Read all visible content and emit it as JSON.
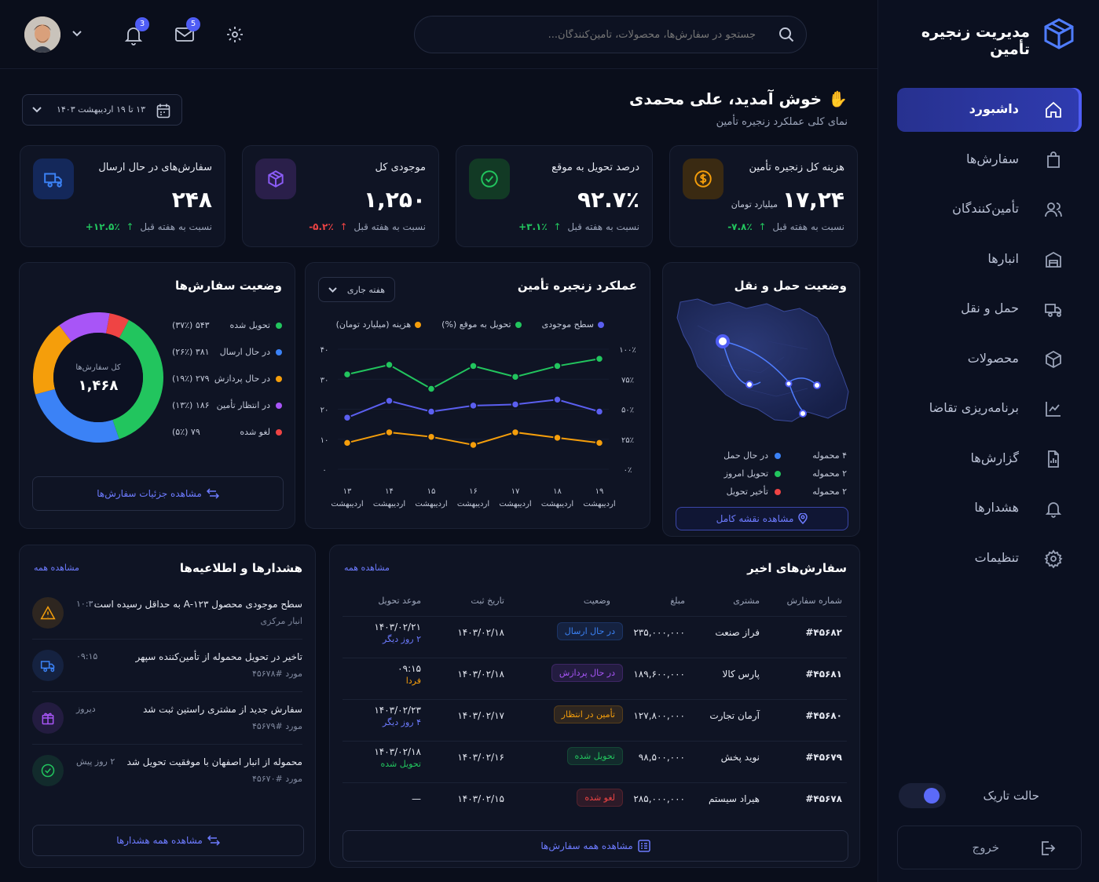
{
  "brand": {
    "title": "مدیریت زنجیره تأمین"
  },
  "search": {
    "placeholder": "جستجو در سفارش‌ها، محصولات، تأمین‌کنندگان..."
  },
  "topbar": {
    "notifications_count": "3",
    "messages_count": "5"
  },
  "sidebar": {
    "items": [
      {
        "label": "داشبورد",
        "icon": "home-icon"
      },
      {
        "label": "سفارش‌ها",
        "icon": "bag-icon"
      },
      {
        "label": "تأمین‌کنندگان",
        "icon": "users-icon"
      },
      {
        "label": "انبارها",
        "icon": "warehouse-icon"
      },
      {
        "label": "حمل و نقل",
        "icon": "truck-icon"
      },
      {
        "label": "محصولات",
        "icon": "box-icon"
      },
      {
        "label": "برنامه‌ریزی تقاضا",
        "icon": "chart-icon"
      },
      {
        "label": "گزارش‌ها",
        "icon": "report-icon"
      },
      {
        "label": "هشدارها",
        "icon": "bell-icon"
      },
      {
        "label": "تنظیمات",
        "icon": "gear-icon"
      }
    ],
    "dark_mode_label": "حالت تاریک",
    "logout_label": "خروج"
  },
  "header": {
    "greeting": "خوش آمدید، علی محمدی",
    "subtitle": "نمای کلی عملکرد زنجیره تأمین",
    "date_range": "۱۳ تا ۱۹ اردیبهشت ۱۴۰۳"
  },
  "kpis": [
    {
      "title": "هزینه کل زنجیره تأمین",
      "value": "۱۷,۲۴",
      "unit": "میلیارد تومان",
      "compare": "نسبت به هفته قبل",
      "change": "-۷.۸٪",
      "color": "#f59e0b"
    },
    {
      "title": "درصد تحویل به موقع",
      "value": "۹۲.۷٪",
      "unit": "",
      "compare": "نسبت به هفته قبل",
      "change": "+۳.۱٪",
      "color": "#22c55e"
    },
    {
      "title": "موجودی کل",
      "value": "۱,۲۵۰",
      "unit": "",
      "compare": "نسبت به هفته قبل",
      "change": "-۵.۲٪",
      "color": "#8b5cf6"
    },
    {
      "title": "سفارش‌های در حال ارسال",
      "value": "۲۴۸",
      "unit": "",
      "compare": "نسبت به هفته قبل",
      "change": "+۱۲.۵٪",
      "color": "#3b82f6"
    }
  ],
  "transport": {
    "title": "وضعیت حمل و نقل",
    "legend": [
      {
        "label": "در حال حمل",
        "value": "۴ محموله",
        "color": "#3b82f6"
      },
      {
        "label": "تحویل امروز",
        "value": "۲ محموله",
        "color": "#22c55e"
      },
      {
        "label": "تأخیر تحویل",
        "value": "۲ محموله",
        "color": "#ef4444"
      }
    ],
    "map_button": "مشاهده نقشه کامل"
  },
  "performance": {
    "title": "عملکرد زنجیره تأمین",
    "period": "هفته جاری"
  },
  "chart_data": {
    "type": "line",
    "x": [
      "۱۳ اردیبهشت",
      "۱۴ اردیبهشت",
      "۱۵ اردیبهشت",
      "۱۶ اردیبهشت",
      "۱۷ اردیبهشت",
      "۱۸ اردیبهشت",
      "۱۹ اردیبهشت"
    ],
    "x_days": [
      "۱۳",
      "۱۴",
      "۱۵",
      "۱۶",
      "۱۷",
      "۱۸",
      "۱۹"
    ],
    "x_month": "اردیبهشت",
    "left_ticks": [
      "۴۰",
      "۳۰",
      "۲۰",
      "۱۰",
      "۰"
    ],
    "right_ticks": [
      "۱۰۰٪",
      "۷۵٪",
      "۵۰٪",
      "۲۵٪",
      "۰٪"
    ],
    "ylim": [
      0,
      40
    ],
    "y2lim": [
      0,
      100
    ],
    "series": [
      {
        "name": "سطح موجودی",
        "color": "#5b5ff0",
        "axis": "right",
        "values": [
          43,
          57,
          48,
          53,
          54,
          58,
          48
        ]
      },
      {
        "name": "تحویل به موقع (%)",
        "color": "#22c55e",
        "axis": "right",
        "values": [
          79,
          87,
          67,
          86,
          77,
          86,
          92
        ]
      },
      {
        "name": "هزینه (میلیارد تومان)",
        "color": "#f59e0b",
        "axis": "left",
        "values": [
          8.8,
          12.3,
          10.8,
          8.1,
          12.3,
          10.5,
          8.8
        ]
      }
    ]
  },
  "orders_status": {
    "title": "وضعیت سفارش‌ها",
    "total_label": "کل سفارش‌ها",
    "total": "۱,۴۶۸",
    "items": [
      {
        "label": "تحویل شده",
        "value": "۵۴۳ (۳۷٪)",
        "pct": 37,
        "color": "#22c55e"
      },
      {
        "label": "در حال ارسال",
        "value": "۳۸۱ (۲۶٪)",
        "pct": 26,
        "color": "#3b82f6"
      },
      {
        "label": "در حال پردازش",
        "value": "۲۷۹ (۱۹٪)",
        "pct": 19,
        "color": "#f59e0b"
      },
      {
        "label": "در انتظار تأمین",
        "value": "۱۸۶ (۱۳٪)",
        "pct": 13,
        "color": "#a855f7"
      },
      {
        "label": "لغو شده",
        "value": "۷۹ (۵٪)",
        "pct": 5,
        "color": "#ef4444"
      }
    ],
    "details_button": "مشاهده جزئیات سفارش‌ها"
  },
  "recent_orders": {
    "title": "سفارش‌های اخیر",
    "view_all": "مشاهده همه",
    "columns": [
      "شماره سفارش",
      "مشتری",
      "مبلغ",
      "وضعیت",
      "تاریخ ثبت",
      "موعد تحویل"
    ],
    "rows": [
      {
        "id": "#۴۵۶۸۲",
        "customer": "فراز صنعت",
        "amount": "۲۳۵,۰۰۰,۰۰۰",
        "status": "در حال ارسال",
        "status_color": "#3b82f6",
        "date": "۱۴۰۳/۰۲/۱۸",
        "due": "۱۴۰۳/۰۲/۲۱",
        "due_note": "۲ روز دیگر",
        "note_color": "#6d7bff"
      },
      {
        "id": "#۴۵۶۸۱",
        "customer": "پارس کالا",
        "amount": "۱۸۹,۶۰۰,۰۰۰",
        "status": "در حال پردازش",
        "status_color": "#a855f7",
        "date": "۱۴۰۳/۰۲/۱۸",
        "due": "۰۹:۱۵",
        "due_note": "فردا",
        "note_color": "#f59e0b"
      },
      {
        "id": "#۴۵۶۸۰",
        "customer": "آرمان تجارت",
        "amount": "۱۲۷,۸۰۰,۰۰۰",
        "status": "تأمین در انتظار",
        "status_color": "#f59e0b",
        "date": "۱۴۰۳/۰۲/۱۷",
        "due": "۱۴۰۳/۰۲/۲۳",
        "due_note": "۴ روز دیگر",
        "note_color": "#6d7bff"
      },
      {
        "id": "#۴۵۶۷۹",
        "customer": "نوید پخش",
        "amount": "۹۸,۵۰۰,۰۰۰",
        "status": "تحویل شده",
        "status_color": "#22c55e",
        "date": "۱۴۰۳/۰۲/۱۶",
        "due": "۱۴۰۳/۰۲/۱۸",
        "due_note": "تحویل شده",
        "note_color": "#22c55e"
      },
      {
        "id": "#۴۵۶۷۸",
        "customer": "هیراد سیستم",
        "amount": "۲۸۵,۰۰۰,۰۰۰",
        "status": "لغو شده",
        "status_color": "#ef4444",
        "date": "۱۴۰۳/۰۲/۱۵",
        "due": "—",
        "due_note": "",
        "note_color": "#6d7bff"
      }
    ],
    "all_button": "مشاهده همه سفارش‌ها"
  },
  "alerts": {
    "title": "هشدارها و اطلاعیه‌ها",
    "view_all": "مشاهده همه",
    "items": [
      {
        "title": "سطح موجودی محصول A-۱۲۳ به حداقل رسیده است",
        "sub": "انبار مرکزی",
        "time": "۱۰:۳۰",
        "icon": "warning-icon",
        "color": "#f59e0b"
      },
      {
        "title": "تاخیر در تحویل محموله از تأمین‌کننده سپهر",
        "sub": "مورد #۴۵۶۷۸",
        "time": "۰۹:۱۵",
        "icon": "truck-icon",
        "color": "#3b82f6"
      },
      {
        "title": "سفارش جدید از مشتری راستین ثبت شد",
        "sub": "مورد #۴۵۶۷۹",
        "time": "دیروز",
        "icon": "gift-icon",
        "color": "#a855f7"
      },
      {
        "title": "محموله از انبار اصفهان با موفقیت تحویل شد",
        "sub": "مورد #۴۵۶۷۰",
        "time": "۲ روز پیش",
        "icon": "check-icon",
        "color": "#22c55e"
      }
    ],
    "all_button": "مشاهده همه هشدارها"
  }
}
